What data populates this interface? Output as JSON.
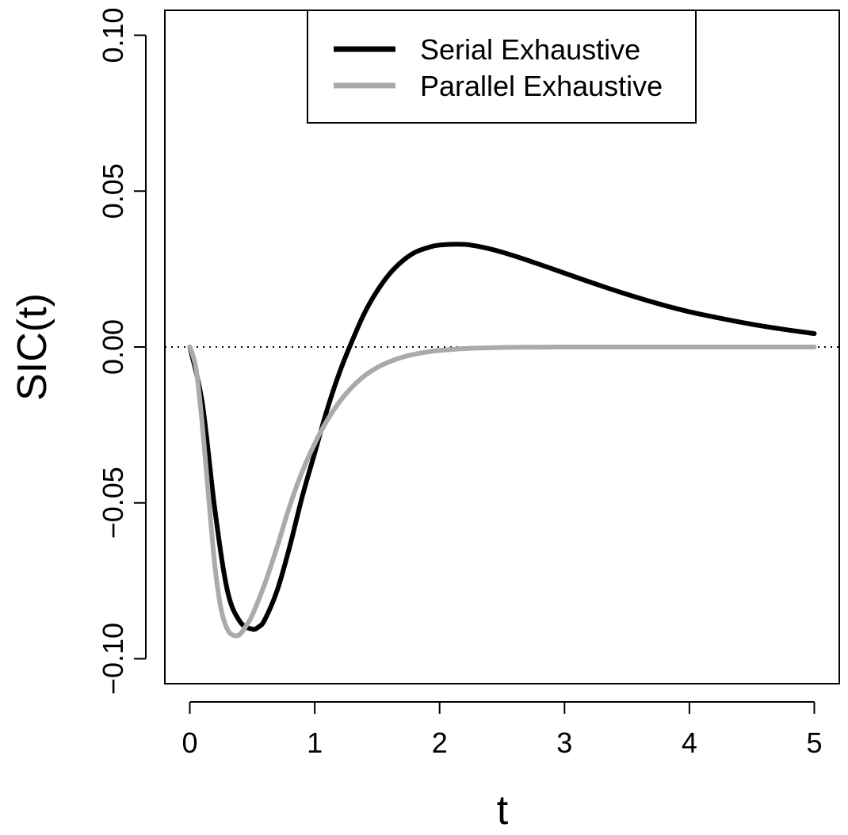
{
  "chart_data": {
    "type": "line",
    "title": "",
    "xlabel": "t",
    "ylabel": "SIC(t)",
    "xlim": [
      -0.2,
      5.2
    ],
    "ylim": [
      -0.108,
      0.108
    ],
    "x_ticks": [
      0,
      1,
      2,
      3,
      4,
      5
    ],
    "x_tick_labels": [
      "0",
      "1",
      "2",
      "3",
      "4",
      "5"
    ],
    "y_ticks": [
      -0.1,
      -0.05,
      0.0,
      0.05,
      0.1
    ],
    "y_tick_labels": [
      "−0.10",
      "−0.05",
      "0.00",
      "0.05",
      "0.10"
    ],
    "grid": false,
    "reference_line": {
      "y": 0,
      "style": "dotted",
      "color": "#000000"
    },
    "legend": {
      "position": "top-right",
      "box": true
    },
    "series": [
      {
        "name": "Serial Exhaustive",
        "color": "#000000",
        "x": [
          0,
          0.1,
          0.2,
          0.3,
          0.4,
          0.5,
          0.55,
          0.6,
          0.7,
          0.8,
          0.9,
          1.0,
          1.1,
          1.2,
          1.3,
          1.4,
          1.5,
          1.6,
          1.7,
          1.8,
          1.9,
          2.0,
          2.2,
          2.4,
          2.6,
          2.8,
          3.0,
          3.25,
          3.5,
          3.75,
          4.0,
          4.25,
          4.5,
          4.75,
          5.0
        ],
        "y": [
          0,
          -0.018,
          -0.052,
          -0.078,
          -0.088,
          -0.0905,
          -0.0898,
          -0.0875,
          -0.078,
          -0.064,
          -0.048,
          -0.034,
          -0.02,
          -0.008,
          0.002,
          0.011,
          0.018,
          0.0235,
          0.0275,
          0.0303,
          0.0318,
          0.0327,
          0.0329,
          0.0315,
          0.0292,
          0.0265,
          0.0237,
          0.0202,
          0.0169,
          0.0139,
          0.0113,
          0.0092,
          0.0073,
          0.0057,
          0.0043
        ]
      },
      {
        "name": "Parallel Exhaustive",
        "color": "#AAAAAA",
        "x": [
          0,
          0.05,
          0.1,
          0.15,
          0.2,
          0.25,
          0.3,
          0.35,
          0.4,
          0.45,
          0.5,
          0.6,
          0.7,
          0.8,
          0.9,
          1.0,
          1.1,
          1.2,
          1.3,
          1.4,
          1.5,
          1.6,
          1.7,
          1.8,
          1.9,
          2.0,
          2.2,
          2.4,
          2.6,
          2.8,
          3.0,
          3.5,
          4.0,
          4.5,
          5.0
        ],
        "y": [
          0,
          -0.007,
          -0.025,
          -0.048,
          -0.07,
          -0.084,
          -0.0905,
          -0.0925,
          -0.0922,
          -0.0895,
          -0.086,
          -0.076,
          -0.064,
          -0.051,
          -0.04,
          -0.031,
          -0.0235,
          -0.0175,
          -0.0128,
          -0.0092,
          -0.0066,
          -0.0047,
          -0.0033,
          -0.0023,
          -0.0016,
          -0.0011,
          -0.0005,
          -0.00025,
          -0.0001,
          -5e-05,
          0,
          0,
          0,
          0,
          0
        ]
      }
    ]
  }
}
